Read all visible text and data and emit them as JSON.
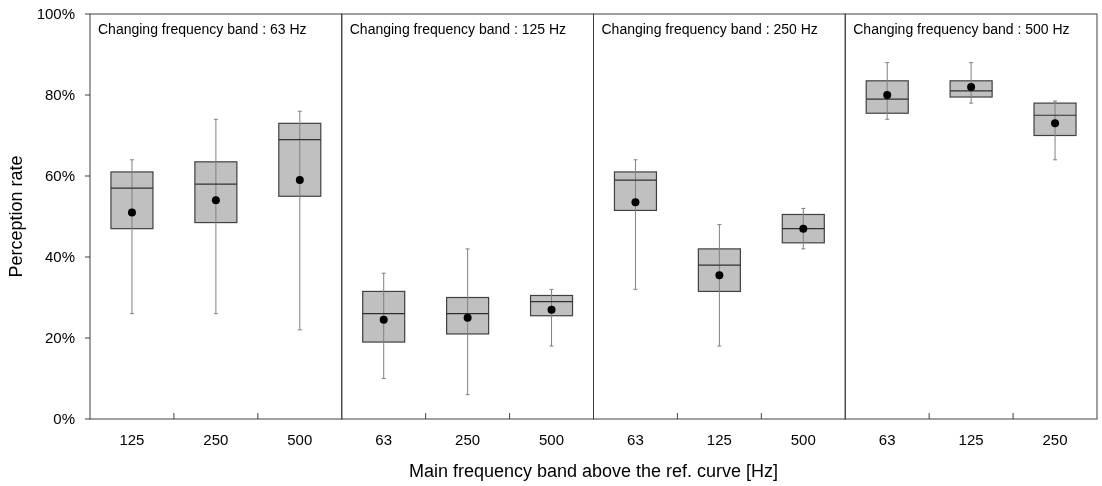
{
  "chart_data": [
    {
      "type": "box",
      "title": "Changing frequency  band : 63 Hz",
      "ylabel": "Perception rate",
      "xlabel": "Main frequency band above the ref. curve [Hz]",
      "categories": [
        "125",
        "250",
        "500"
      ],
      "color": "#c0c0c0",
      "ylim": [
        0,
        100
      ],
      "yticks": [
        {
          "value": 0,
          "label": "0%"
        },
        {
          "value": 20,
          "label": "20%"
        },
        {
          "value": 40,
          "label": "40%"
        },
        {
          "value": 60,
          "label": "60%"
        },
        {
          "value": 80,
          "label": "80%"
        },
        {
          "value": 100,
          "label": "100%"
        }
      ],
      "boxes": [
        {
          "low": 26,
          "q1": 47,
          "median": 57,
          "q3": 61,
          "high": 64,
          "mean": 51
        },
        {
          "low": 26,
          "q1": 48.5,
          "median": 58,
          "q3": 63.5,
          "high": 74,
          "mean": 54
        },
        {
          "low": 22,
          "q1": 55,
          "median": 69,
          "q3": 73,
          "high": 76,
          "mean": 59
        }
      ]
    },
    {
      "type": "box",
      "title": "Changing frequency  band : 125 Hz",
      "categories": [
        "63",
        "250",
        "500"
      ],
      "color": "#c0c0c0",
      "ylim": [
        0,
        100
      ],
      "tick_labels": "x",
      "boxes": [
        {
          "low": 10,
          "q1": 19,
          "median": 26,
          "q3": 31.5,
          "high": 36,
          "mean": 24.5
        },
        {
          "low": 6,
          "q1": 21,
          "median": 26,
          "q3": 30,
          "high": 42,
          "mean": 25
        },
        {
          "low": 18,
          "q1": 25.5,
          "median": 29,
          "q3": 30.5,
          "high": 32,
          "mean": 27
        }
      ]
    },
    {
      "type": "box",
      "title": "Changing frequency  band : 250 Hz",
      "categories": [
        "63",
        "125",
        "500"
      ],
      "color": "#c0c0c0",
      "ylim": [
        0,
        100
      ],
      "tick_labels": "x",
      "boxes": [
        {
          "low": 32,
          "q1": 51.5,
          "median": 59,
          "q3": 61,
          "high": 64,
          "mean": 53.5
        },
        {
          "low": 18,
          "q1": 31.5,
          "median": 38,
          "q3": 42,
          "high": 48,
          "mean": 35.5
        },
        {
          "low": 42,
          "q1": 43.5,
          "median": 47,
          "q3": 50.5,
          "high": 52,
          "mean": 47
        }
      ]
    },
    {
      "type": "box",
      "title": "Changing frequency  band : 500 Hz",
      "categories": [
        "63",
        "125",
        "250"
      ],
      "color": "#c0c0c0",
      "ylim": [
        0,
        100
      ],
      "tick_labels": "x",
      "boxes": [
        {
          "low": 74,
          "q1": 75.5,
          "median": 79,
          "q3": 83.5,
          "high": 88,
          "mean": 80
        },
        {
          "low": 78,
          "q1": 79.5,
          "median": 81,
          "q3": 83.5,
          "high": 88,
          "mean": 82
        },
        {
          "low": 64,
          "q1": 70,
          "median": 75,
          "q3": 78,
          "high": 78.5,
          "mean": 73
        }
      ]
    }
  ]
}
